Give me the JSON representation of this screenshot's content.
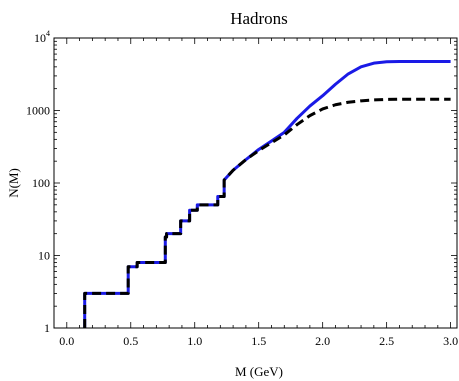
{
  "chart_data": {
    "type": "line",
    "title": "Hadrons",
    "xlabel": "M (GeV)",
    "ylabel": "N(M)",
    "xlim": [
      -0.1,
      3.05
    ],
    "ylim": [
      1,
      10000
    ],
    "yscale": "log",
    "grid": false,
    "legend": "none",
    "x_ticks": [
      {
        "value": 0.0,
        "label": "0.0"
      },
      {
        "value": 0.5,
        "label": "0.5"
      },
      {
        "value": 1.0,
        "label": "1.0"
      },
      {
        "value": 1.5,
        "label": "1.5"
      },
      {
        "value": 2.0,
        "label": "2.0"
      },
      {
        "value": 2.5,
        "label": "2.5"
      },
      {
        "value": 3.0,
        "label": "3.0"
      }
    ],
    "y_ticks": [
      {
        "value": 1,
        "label": "1"
      },
      {
        "value": 10,
        "label": "10"
      },
      {
        "value": 100,
        "label": "100"
      },
      {
        "value": 1000,
        "label": "1000"
      },
      {
        "value": 10000,
        "base": "10",
        "exp": "4"
      }
    ],
    "series": [
      {
        "style": "solid",
        "color": "#1a1ae6",
        "x": [
          0.14,
          0.14,
          0.48,
          0.48,
          0.55,
          0.55,
          0.77,
          0.77,
          0.78,
          0.78,
          0.89,
          0.89,
          0.96,
          0.96,
          1.02,
          1.02,
          1.18,
          1.18,
          1.23,
          1.23,
          1.3,
          1.4,
          1.5,
          1.6,
          1.7,
          1.8,
          1.9,
          2.0,
          2.1,
          2.2,
          2.3,
          2.4,
          2.5,
          2.6,
          2.7,
          2.8,
          2.9,
          3.0
        ],
        "y": [
          1,
          3,
          3,
          7,
          7,
          8,
          8,
          18,
          18,
          20,
          20,
          30,
          30,
          42,
          42,
          50,
          50,
          65,
          65,
          110,
          150,
          210,
          290,
          380,
          500,
          780,
          1150,
          1600,
          2300,
          3200,
          4000,
          4500,
          4700,
          4750,
          4750,
          4750,
          4750,
          4750
        ]
      },
      {
        "style": "dashed",
        "color": "#000000",
        "x": [
          0.14,
          0.14,
          0.48,
          0.48,
          0.55,
          0.55,
          0.77,
          0.77,
          0.78,
          0.78,
          0.89,
          0.89,
          0.96,
          0.96,
          1.02,
          1.02,
          1.18,
          1.18,
          1.23,
          1.23,
          1.3,
          1.4,
          1.5,
          1.6,
          1.7,
          1.8,
          1.9,
          2.0,
          2.1,
          2.2,
          2.3,
          2.4,
          2.5,
          2.6,
          2.7,
          2.8,
          2.9,
          3.0
        ],
        "y": [
          1,
          3,
          3,
          7,
          7,
          8,
          8,
          18,
          18,
          20,
          20,
          30,
          30,
          42,
          42,
          50,
          50,
          65,
          65,
          110,
          150,
          210,
          280,
          360,
          460,
          640,
          850,
          1050,
          1200,
          1300,
          1360,
          1400,
          1420,
          1430,
          1430,
          1430,
          1430,
          1430
        ]
      }
    ]
  }
}
